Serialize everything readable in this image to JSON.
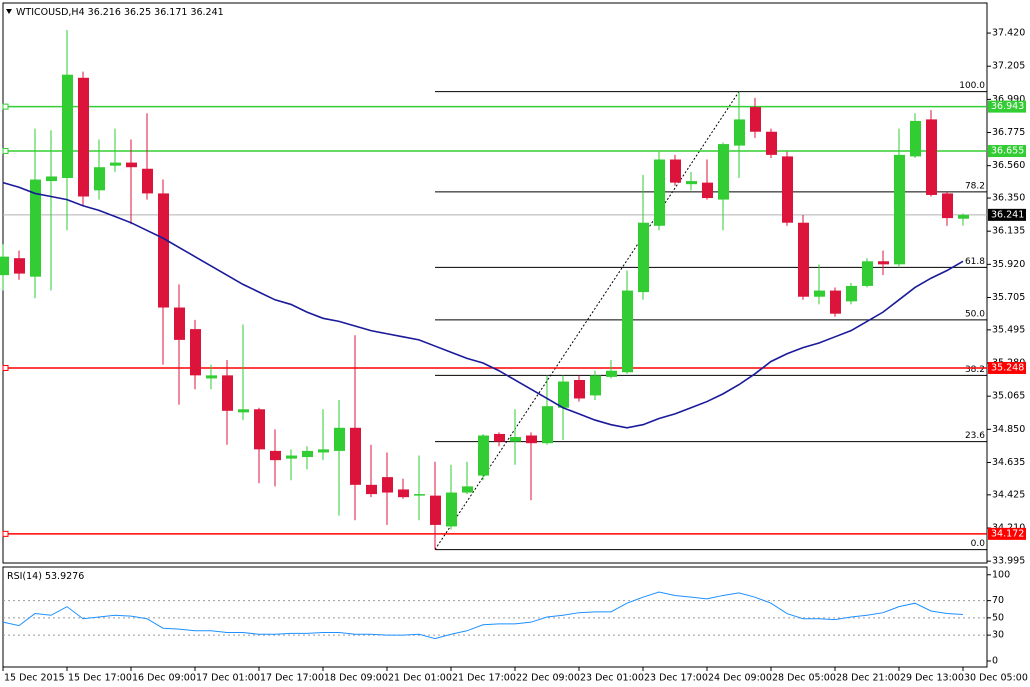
{
  "chart_data": [
    {
      "type": "candlestick",
      "title": "WTICOUSD,H4",
      "categories": [
        "15 Dec 2015",
        null,
        null,
        null,
        "15 Dec 17:00",
        null,
        null,
        null,
        "16 Dec 09:00",
        null,
        null,
        null,
        "17 Dec 01:00",
        null,
        null,
        null,
        "17 Dec 17:00",
        null,
        null,
        null,
        "18 Dec 09:00",
        null,
        null,
        null,
        "21 Dec 01:00",
        null,
        null,
        null,
        "21 Dec 17:00",
        null,
        null,
        null,
        "22 Dec 09:00",
        null,
        null,
        null,
        "23 Dec 01:00",
        null,
        null,
        null,
        "23 Dec 17:00",
        null,
        null,
        null,
        "24 Dec 09:00",
        null,
        null,
        null,
        "28 Dec 05:00",
        null,
        null,
        null,
        "28 Dec 21:00",
        null,
        null,
        null,
        "29 Dec 13:00",
        null,
        null,
        null,
        "30 Dec 05:00"
      ],
      "open": [
        35.85,
        35.96,
        35.84,
        36.46,
        36.48,
        37.13,
        36.4,
        36.56,
        36.58,
        36.54,
        36.38,
        35.64,
        35.5,
        35.18,
        35.2,
        34.96,
        34.98,
        34.71,
        34.66,
        34.67,
        34.7,
        34.71,
        34.86,
        34.49,
        34.54,
        34.46,
        34.42,
        34.42,
        34.22,
        34.44,
        34.55,
        34.82,
        34.77,
        34.81,
        34.76,
        34.99,
        35.17,
        35.07,
        35.19,
        35.22,
        35.74,
        36.17,
        36.6,
        36.44,
        36.45,
        36.34,
        36.69,
        36.94,
        36.78,
        36.62,
        36.19,
        35.71,
        35.75,
        35.68,
        35.78,
        35.94,
        35.92,
        36.62,
        36.86,
        36.38,
        36.216
      ],
      "high": [
        36.05,
        36.01,
        36.8,
        36.79,
        37.44,
        37.17,
        36.73,
        36.8,
        36.73,
        36.9,
        36.47,
        35.79,
        35.56,
        35.27,
        35.3,
        35.53,
        34.99,
        34.85,
        34.72,
        34.74,
        34.98,
        35.04,
        35.46,
        34.75,
        34.7,
        34.53,
        34.68,
        34.64,
        34.62,
        34.64,
        34.82,
        34.83,
        34.98,
        34.83,
        35.2,
        35.2,
        35.2,
        35.23,
        35.3,
        35.88,
        36.5,
        36.65,
        36.63,
        36.52,
        36.6,
        36.71,
        37.04,
        37.0,
        36.8,
        36.65,
        36.24,
        35.92,
        35.77,
        35.8,
        35.96,
        36.01,
        36.8,
        36.9,
        36.92,
        36.39,
        36.25
      ],
      "low": [
        35.75,
        35.82,
        35.7,
        35.75,
        36.14,
        36.3,
        36.34,
        36.52,
        36.18,
        36.34,
        35.27,
        35.01,
        35.11,
        35.11,
        34.75,
        34.91,
        34.5,
        34.48,
        34.52,
        34.59,
        34.65,
        34.29,
        34.26,
        34.41,
        34.23,
        34.4,
        34.26,
        34.07,
        34.2,
        34.43,
        34.52,
        34.74,
        34.62,
        34.39,
        34.75,
        34.78,
        35.03,
        35.04,
        35.18,
        35.21,
        35.69,
        36.14,
        36.43,
        36.4,
        36.34,
        36.14,
        36.48,
        36.74,
        36.61,
        36.17,
        35.69,
        35.66,
        35.58,
        35.66,
        35.77,
        35.85,
        35.9,
        36.61,
        36.36,
        36.17,
        36.171
      ],
      "close": [
        35.97,
        35.86,
        36.47,
        36.49,
        37.15,
        36.36,
        36.55,
        36.58,
        36.55,
        36.38,
        35.64,
        35.43,
        35.2,
        35.2,
        34.97,
        34.98,
        34.72,
        34.65,
        34.68,
        34.71,
        34.72,
        34.86,
        34.49,
        34.43,
        34.44,
        34.41,
        34.43,
        34.23,
        34.44,
        34.48,
        34.81,
        34.77,
        34.8,
        34.76,
        35.0,
        35.16,
        35.05,
        35.2,
        35.23,
        35.75,
        36.19,
        36.6,
        36.45,
        36.46,
        36.35,
        36.7,
        36.86,
        36.78,
        36.63,
        36.19,
        35.71,
        35.75,
        35.6,
        35.78,
        35.94,
        35.92,
        36.63,
        36.85,
        36.37,
        36.22,
        36.241
      ],
      "up_color": "#32cd32",
      "down_color": "#dc143c",
      "ma": {
        "color": "#1a1a9a",
        "values": [
          36.45,
          36.42,
          36.38,
          36.36,
          36.34,
          36.3,
          36.27,
          36.23,
          36.19,
          36.14,
          36.09,
          36.03,
          35.97,
          35.91,
          35.85,
          35.79,
          35.74,
          35.69,
          35.66,
          35.61,
          35.57,
          35.55,
          35.52,
          35.49,
          35.47,
          35.45,
          35.43,
          35.39,
          35.35,
          35.31,
          35.28,
          35.23,
          35.17,
          35.11,
          35.05,
          34.99,
          34.95,
          34.91,
          34.88,
          34.86,
          34.88,
          34.92,
          34.95,
          34.99,
          35.03,
          35.08,
          35.14,
          35.21,
          35.29,
          35.34,
          35.38,
          35.41,
          35.45,
          35.49,
          35.55,
          35.61,
          35.69,
          35.77,
          35.83,
          35.88,
          35.94
        ]
      },
      "levels": [
        {
          "value": 36.943,
          "color": "#32cd32"
        },
        {
          "value": 36.655,
          "color": "#32cd32"
        },
        {
          "value": 35.248,
          "color": "#ff0000"
        },
        {
          "value": 34.172,
          "color": "#ff0000"
        }
      ],
      "fibonacci": {
        "color": "#000000",
        "levels": [
          {
            "label": "0.0",
            "value": 34.07
          },
          {
            "label": "23.6",
            "value": 34.77
          },
          {
            "label": "38.2",
            "value": 35.2
          },
          {
            "label": "50.0",
            "value": 35.56
          },
          {
            "label": "61.8",
            "value": 35.9
          },
          {
            "label": "78.2",
            "value": 36.39
          },
          {
            "label": "100.0",
            "value": 37.04
          }
        ]
      },
      "ylim": [
        33.983,
        37.615
      ],
      "yticks": [
        {
          "value": 37.42,
          "label": "37.420"
        },
        {
          "value": 37.205,
          "label": "37.205"
        },
        {
          "value": 36.99,
          "label": "36.990"
        },
        {
          "value": 36.775,
          "label": "36.775"
        },
        {
          "value": 36.56,
          "label": "36.560"
        },
        {
          "value": 36.35,
          "label": "36.350"
        },
        {
          "value": 36.135,
          "label": "36.135"
        },
        {
          "value": 35.92,
          "label": "35.920"
        },
        {
          "value": 35.705,
          "label": "35.705"
        },
        {
          "value": 35.495,
          "label": "35.495"
        },
        {
          "value": 35.28,
          "label": "35.280"
        },
        {
          "value": 35.065,
          "label": "35.065"
        },
        {
          "value": 34.85,
          "label": "34.850"
        },
        {
          "value": 34.635,
          "label": "34.635"
        },
        {
          "value": 34.425,
          "label": "34.425"
        },
        {
          "value": 34.21,
          "label": "34.210"
        },
        {
          "value": 33.995,
          "label": "33.995"
        }
      ]
    },
    {
      "type": "line",
      "title": "RSI(14)",
      "color": "#1e90ff",
      "values": [
        45,
        41,
        55,
        53,
        63,
        49,
        51,
        53,
        52,
        49,
        38,
        37,
        35,
        35,
        33,
        33,
        31,
        31,
        32,
        32,
        33,
        33,
        31,
        31,
        30,
        30,
        31,
        26,
        31,
        35,
        42,
        43,
        43,
        45,
        51,
        53,
        56,
        57,
        57,
        67,
        74,
        80,
        76,
        74,
        72,
        76,
        79,
        74,
        67,
        55,
        49,
        49,
        48,
        51,
        53,
        56,
        63,
        67,
        58,
        55,
        53.9276
      ],
      "ylim": [
        -7,
        109
      ],
      "yticks": [
        100,
        70,
        50,
        30,
        0
      ],
      "levels": [
        70,
        50,
        30
      ]
    }
  ]
}
